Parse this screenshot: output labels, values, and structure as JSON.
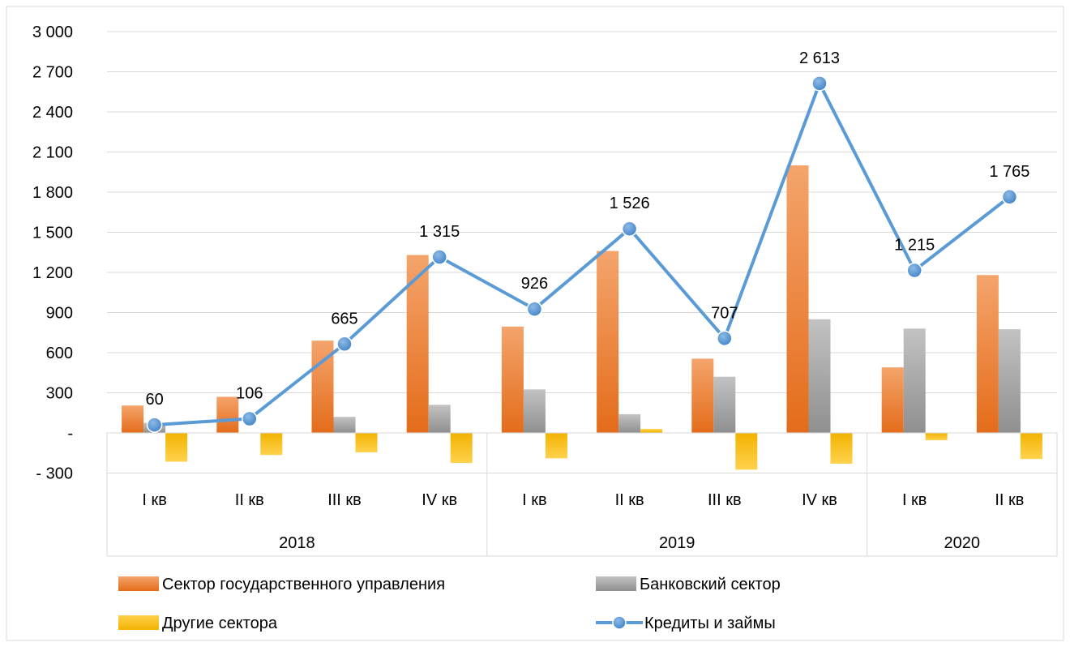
{
  "chart_data": {
    "type": "bar",
    "title": "",
    "xlabel": "",
    "ylabel": "",
    "ylim": [
      -300,
      3000
    ],
    "grid": true,
    "legend_position": "bottom",
    "y_ticks": [
      {
        "value": 3000,
        "label": "3 000"
      },
      {
        "value": 2700,
        "label": "2 700"
      },
      {
        "value": 2400,
        "label": "2 400"
      },
      {
        "value": 2100,
        "label": "2 100"
      },
      {
        "value": 1800,
        "label": "1 800"
      },
      {
        "value": 1500,
        "label": "1 500"
      },
      {
        "value": 1200,
        "label": "1 200"
      },
      {
        "value": 900,
        "label": "900"
      },
      {
        "value": 600,
        "label": "600"
      },
      {
        "value": 300,
        "label": "300"
      },
      {
        "value": 0,
        "label": "-"
      },
      {
        "value": -300,
        "label": "- 300"
      }
    ],
    "categories": [
      "I кв",
      "II кв",
      "III кв",
      "IV кв",
      "I кв",
      "II кв",
      "III кв",
      "IV кв",
      "I кв",
      "II кв"
    ],
    "groups": [
      {
        "label": "2018",
        "start": 0,
        "end": 3
      },
      {
        "label": "2019",
        "start": 4,
        "end": 7
      },
      {
        "label": "2020",
        "start": 8,
        "end": 9
      }
    ],
    "series": [
      {
        "name": "Сектор государственного управления",
        "type": "bar",
        "color": "#ED7D31",
        "values": [
          205,
          270,
          690,
          1330,
          795,
          1360,
          555,
          2000,
          490,
          1180
        ]
      },
      {
        "name": "Банковский сектор",
        "type": "bar",
        "color": "#A5A5A5",
        "values": [
          75,
          0,
          120,
          210,
          325,
          140,
          420,
          850,
          780,
          775
        ]
      },
      {
        "name": "Другие сектора",
        "type": "bar",
        "color": "#FFC000",
        "values": [
          -215,
          -165,
          -145,
          -225,
          -190,
          30,
          -275,
          -230,
          -55,
          -195
        ]
      },
      {
        "name": "Кредиты и займы",
        "type": "line",
        "color": "#5B9BD5",
        "values": [
          60,
          106,
          665,
          1315,
          926,
          1526,
          707,
          2613,
          1215,
          1765
        ],
        "data_labels": [
          "60",
          "106",
          "665",
          "1 315",
          "926",
          "1 526",
          "707",
          "2 613",
          "1 215",
          "1 765"
        ]
      }
    ]
  }
}
